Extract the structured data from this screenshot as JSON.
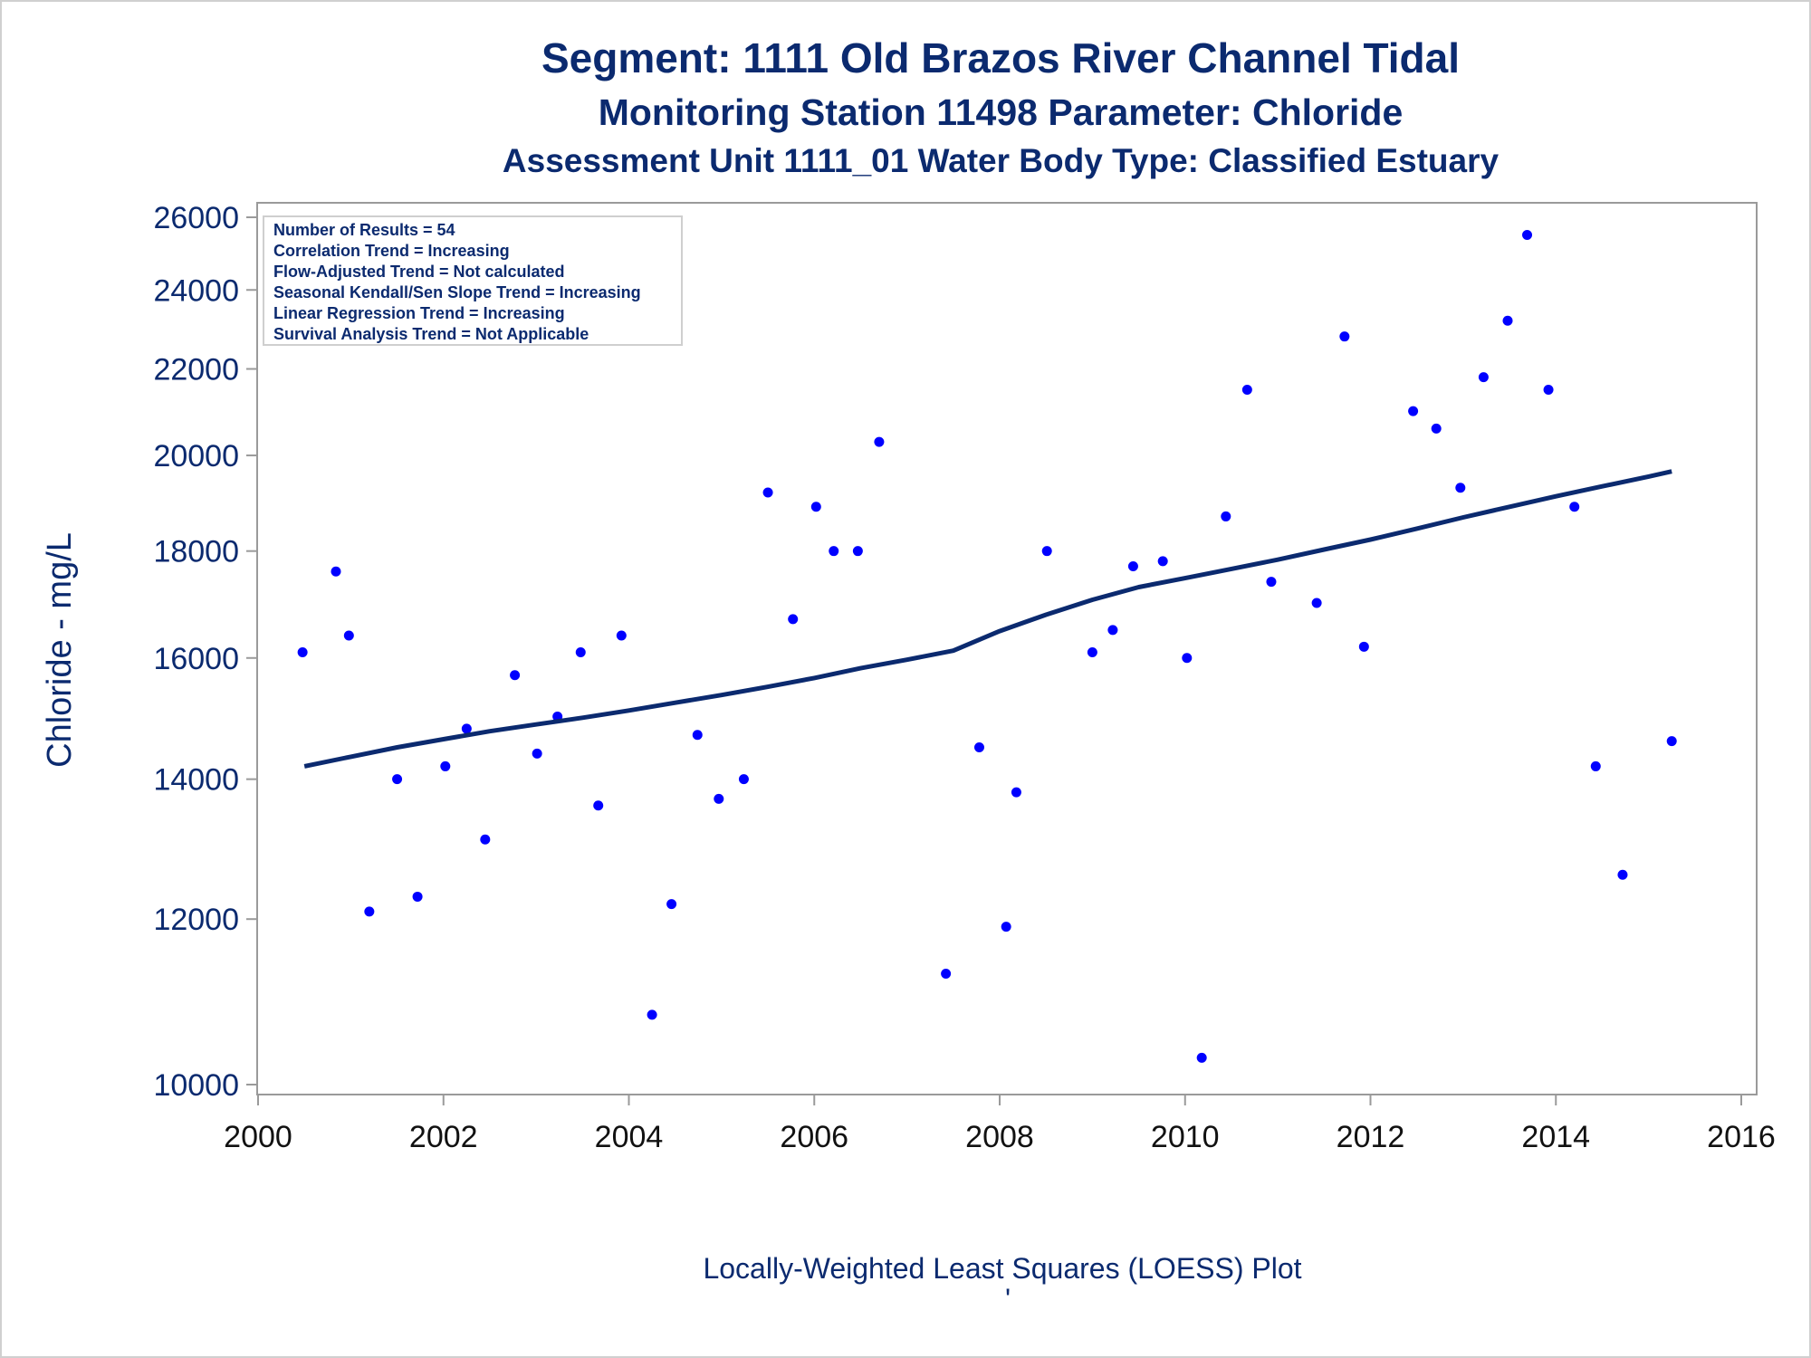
{
  "titles": {
    "line1": "Segment: 1111  Old Brazos River Channel Tidal",
    "line2": "Monitoring Station 11498 Parameter: Chloride",
    "line3": "Assessment Unit 1111_01   Water Body Type: Classified Estuary"
  },
  "stats_box": [
    "Number of Results = 54",
    "Correlation Trend = Increasing",
    "Flow-Adjusted Trend = Not calculated",
    "Seasonal Kendall/Sen Slope Trend = Increasing",
    "Linear Regression Trend = Increasing",
    "Survival Analysis Trend = Not Applicable"
  ],
  "footnote": "Locally-Weighted Least Squares (LOESS) Plot",
  "footnote_mark": "'",
  "colors": {
    "text": "#0b2a6f",
    "points": "#0000ff",
    "loess_line": "#0b2a6f",
    "axis": "#9a9a9a"
  },
  "chart_data": {
    "type": "scatter",
    "xlabel": "",
    "ylabel": "Chloride - mg/L",
    "xlim": [
      2000,
      2016
    ],
    "ylim": [
      10000,
      26000
    ],
    "yscale": "log",
    "xticks": [
      2000,
      2002,
      2004,
      2006,
      2008,
      2010,
      2012,
      2014,
      2016
    ],
    "yticks": [
      10000,
      12000,
      14000,
      16000,
      18000,
      20000,
      22000,
      24000,
      26000
    ],
    "grid": false,
    "legend": "none",
    "series": [
      {
        "type": "scatter",
        "points": [
          [
            2000.48,
            16100
          ],
          [
            2000.84,
            17600
          ],
          [
            2000.98,
            16400
          ],
          [
            2001.2,
            12100
          ],
          [
            2001.5,
            14000
          ],
          [
            2001.72,
            12300
          ],
          [
            2002.02,
            14200
          ],
          [
            2002.25,
            14800
          ],
          [
            2002.45,
            13100
          ],
          [
            2002.77,
            15700
          ],
          [
            2003.01,
            14400
          ],
          [
            2003.23,
            15000
          ],
          [
            2003.48,
            16100
          ],
          [
            2003.67,
            13600
          ],
          [
            2003.92,
            16400
          ],
          [
            2004.25,
            10800
          ],
          [
            2004.46,
            12200
          ],
          [
            2004.74,
            14700
          ],
          [
            2004.97,
            13700
          ],
          [
            2005.24,
            14000
          ],
          [
            2005.5,
            19200
          ],
          [
            2005.77,
            16700
          ],
          [
            2006.02,
            18900
          ],
          [
            2006.21,
            18000
          ],
          [
            2006.47,
            18000
          ],
          [
            2006.7,
            20300
          ],
          [
            2007.42,
            11300
          ],
          [
            2007.78,
            14500
          ],
          [
            2008.07,
            11900
          ],
          [
            2008.18,
            13800
          ],
          [
            2008.51,
            18000
          ],
          [
            2009.0,
            16100
          ],
          [
            2009.22,
            16500
          ],
          [
            2009.44,
            17700
          ],
          [
            2009.76,
            17800
          ],
          [
            2010.02,
            16000
          ],
          [
            2010.18,
            10300
          ],
          [
            2010.44,
            18700
          ],
          [
            2010.67,
            21500
          ],
          [
            2010.93,
            17400
          ],
          [
            2011.42,
            17000
          ],
          [
            2011.72,
            22800
          ],
          [
            2011.93,
            16200
          ],
          [
            2012.46,
            21000
          ],
          [
            2012.71,
            20600
          ],
          [
            2012.97,
            19300
          ],
          [
            2013.22,
            21800
          ],
          [
            2013.48,
            23200
          ],
          [
            2013.69,
            25500
          ],
          [
            2013.92,
            21500
          ],
          [
            2014.2,
            18900
          ],
          [
            2014.43,
            14200
          ],
          [
            2014.72,
            12600
          ],
          [
            2015.25,
            14600
          ]
        ]
      },
      {
        "type": "line",
        "points": [
          [
            2000.5,
            14200
          ],
          [
            2001.0,
            14350
          ],
          [
            2001.5,
            14500
          ],
          [
            2002.0,
            14630
          ],
          [
            2002.5,
            14760
          ],
          [
            2003.0,
            14870
          ],
          [
            2003.5,
            14980
          ],
          [
            2004.0,
            15100
          ],
          [
            2004.5,
            15230
          ],
          [
            2005.0,
            15360
          ],
          [
            2005.5,
            15500
          ],
          [
            2006.0,
            15650
          ],
          [
            2006.5,
            15820
          ],
          [
            2007.0,
            15970
          ],
          [
            2007.5,
            16130
          ],
          [
            2008.0,
            16480
          ],
          [
            2008.5,
            16780
          ],
          [
            2009.0,
            17060
          ],
          [
            2009.5,
            17300
          ],
          [
            2010.0,
            17470
          ],
          [
            2010.5,
            17650
          ],
          [
            2011.0,
            17830
          ],
          [
            2011.5,
            18030
          ],
          [
            2012.0,
            18230
          ],
          [
            2012.5,
            18450
          ],
          [
            2013.0,
            18680
          ],
          [
            2013.5,
            18900
          ],
          [
            2014.0,
            19120
          ],
          [
            2014.5,
            19330
          ],
          [
            2015.0,
            19540
          ],
          [
            2015.25,
            19650
          ]
        ]
      }
    ]
  }
}
